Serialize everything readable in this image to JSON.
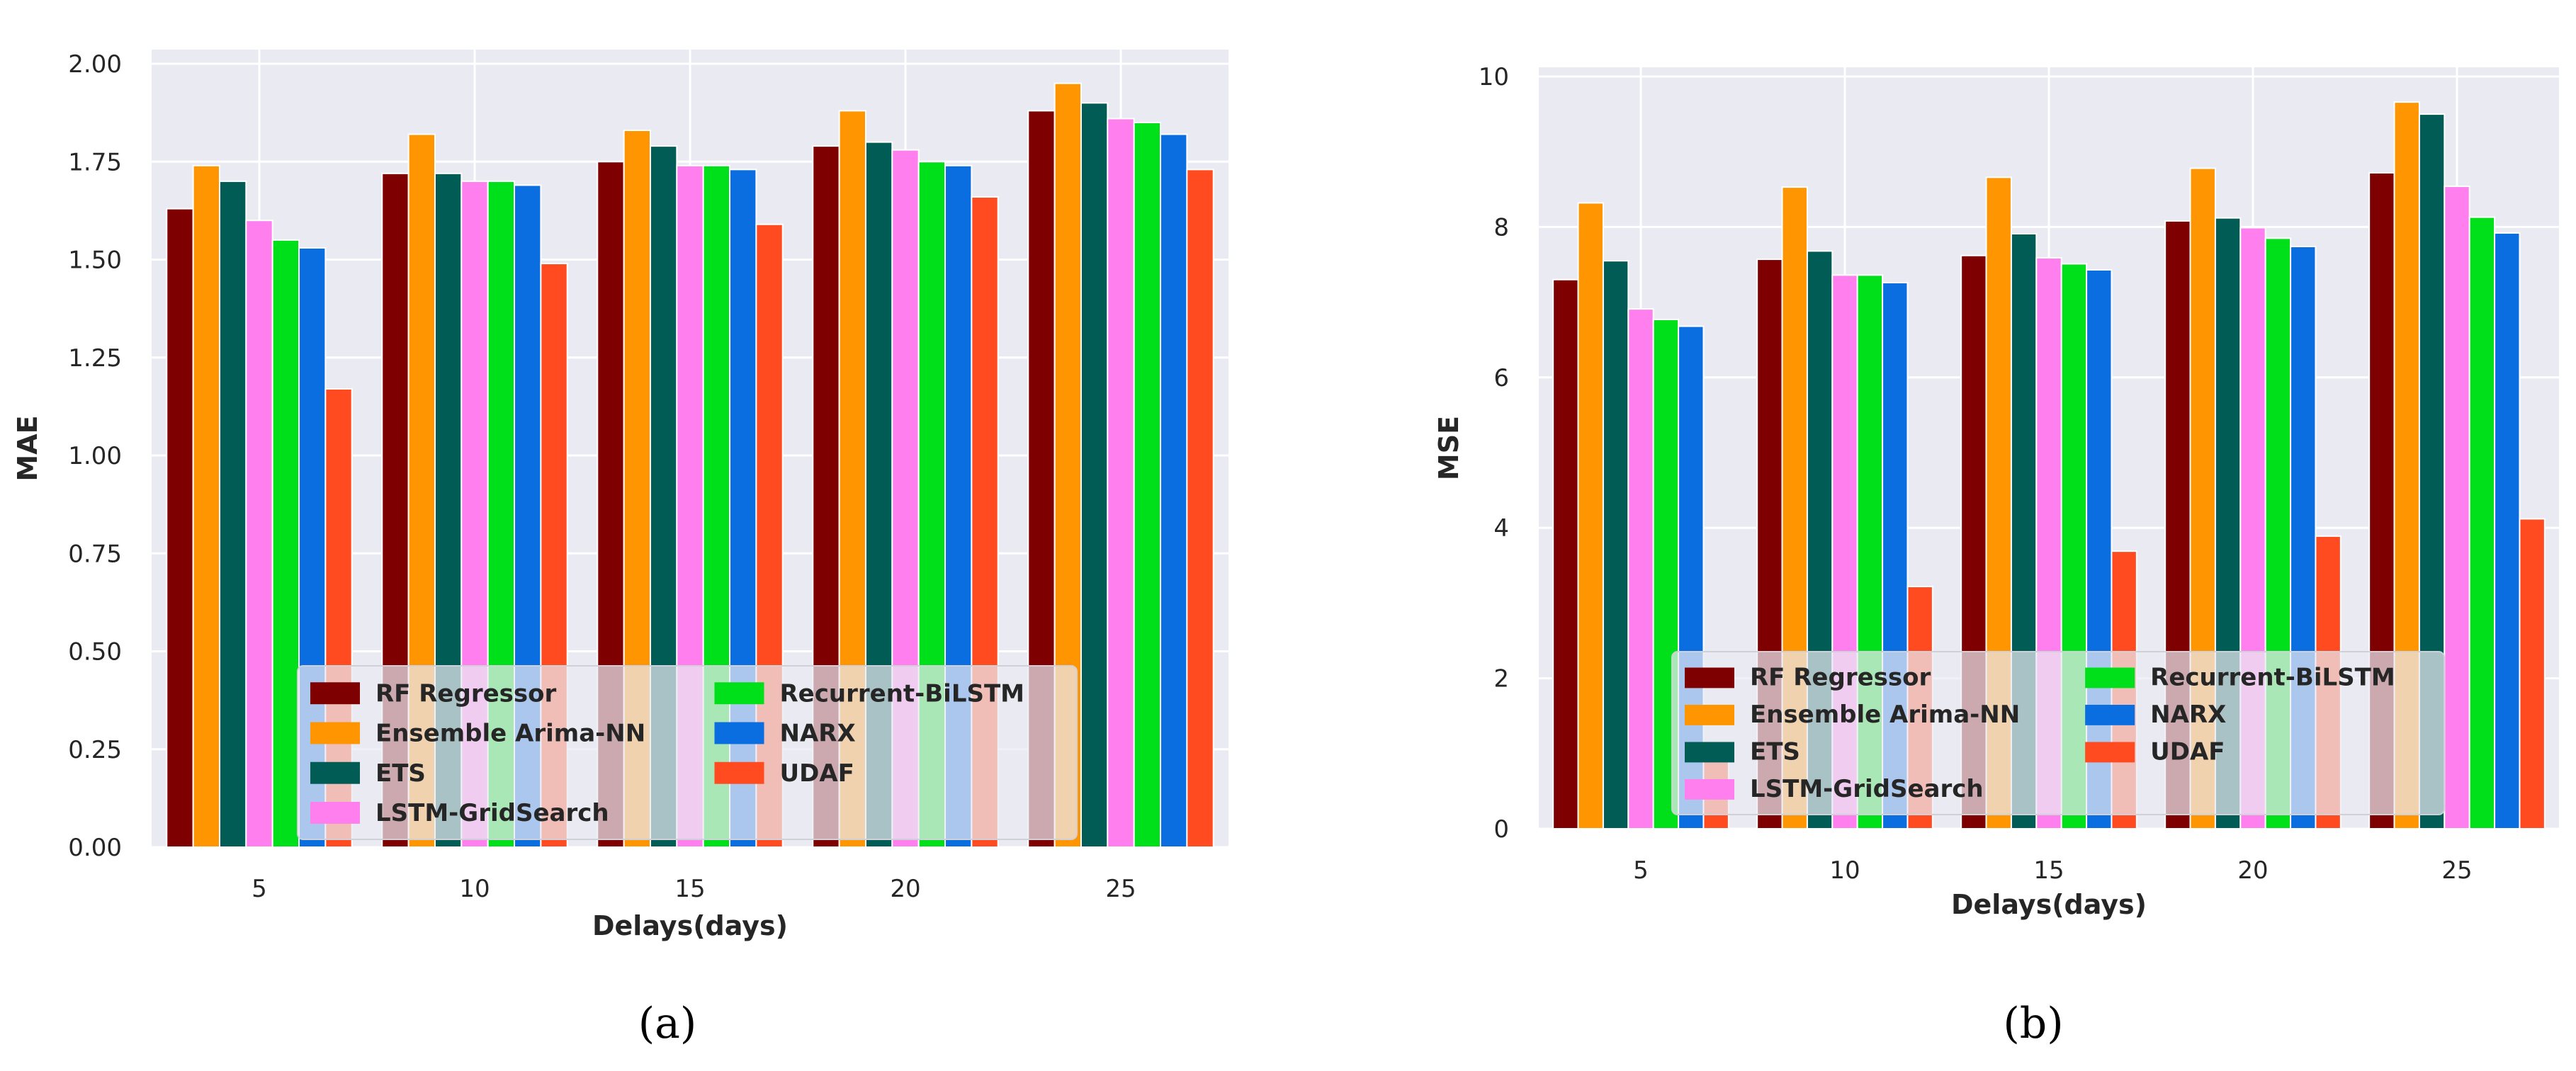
{
  "chart_data": [
    {
      "type": "bar",
      "panel_label": "(a)",
      "xlabel": "Delays(days)",
      "ylabel": "MAE",
      "categories": [
        "5",
        "10",
        "15",
        "20",
        "25"
      ],
      "ylim": [
        0,
        2.0
      ],
      "yticks": [
        "0.00",
        "0.25",
        "0.50",
        "0.75",
        "1.00",
        "1.25",
        "1.50",
        "1.75",
        "2.00"
      ],
      "grid": true,
      "legend_position": "lower-center",
      "series": [
        {
          "name": "RF Regressor",
          "color": "#7f0000",
          "values": [
            1.63,
            1.72,
            1.75,
            1.79,
            1.88
          ]
        },
        {
          "name": "Ensemble Arima-NN",
          "color": "#ff9500",
          "values": [
            1.74,
            1.82,
            1.83,
            1.88,
            1.95
          ]
        },
        {
          "name": "ETS",
          "color": "#005c55",
          "values": [
            1.7,
            1.72,
            1.79,
            1.8,
            1.9
          ]
        },
        {
          "name": "LSTM-GridSearch",
          "color": "#ff7fee",
          "values": [
            1.6,
            1.7,
            1.74,
            1.78,
            1.86
          ]
        },
        {
          "name": "Recurrent-BiLSTM",
          "color": "#00e01a",
          "values": [
            1.55,
            1.7,
            1.74,
            1.75,
            1.85
          ]
        },
        {
          "name": "NARX",
          "color": "#0a6ee0",
          "values": [
            1.53,
            1.69,
            1.73,
            1.74,
            1.82
          ]
        },
        {
          "name": "UDAF",
          "color": "#ff4b1f",
          "values": [
            1.17,
            1.49,
            1.59,
            1.66,
            1.73
          ]
        }
      ]
    },
    {
      "type": "bar",
      "panel_label": "(b)",
      "xlabel": "Delays(days)",
      "ylabel": "MSE",
      "categories": [
        "5",
        "10",
        "15",
        "20",
        "25"
      ],
      "ylim": [
        0,
        10
      ],
      "yticks": [
        "0",
        "2",
        "4",
        "6",
        "8",
        "10"
      ],
      "grid": true,
      "legend_position": "lower-center",
      "series": [
        {
          "name": "RF Regressor",
          "color": "#7f0000",
          "values": [
            7.3,
            7.57,
            7.62,
            8.08,
            8.72
          ]
        },
        {
          "name": "Ensemble Arima-NN",
          "color": "#ff9500",
          "values": [
            8.32,
            8.53,
            8.66,
            8.78,
            9.66
          ]
        },
        {
          "name": "ETS",
          "color": "#005c55",
          "values": [
            7.55,
            7.68,
            7.91,
            8.12,
            9.5
          ]
        },
        {
          "name": "LSTM-GridSearch",
          "color": "#ff7fee",
          "values": [
            6.91,
            7.36,
            7.59,
            7.99,
            8.54
          ]
        },
        {
          "name": "Recurrent-BiLSTM",
          "color": "#00e01a",
          "values": [
            6.77,
            7.36,
            7.51,
            7.85,
            8.13
          ]
        },
        {
          "name": "NARX",
          "color": "#0a6ee0",
          "values": [
            6.68,
            7.26,
            7.43,
            7.74,
            7.92
          ]
        },
        {
          "name": "UDAF",
          "color": "#ff4b1f",
          "values": [
            1.05,
            3.22,
            3.69,
            3.89,
            4.12
          ]
        }
      ]
    }
  ]
}
